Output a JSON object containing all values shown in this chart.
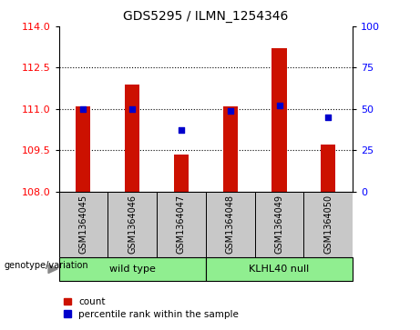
{
  "title": "GDS5295 / ILMN_1254346",
  "samples": [
    "GSM1364045",
    "GSM1364046",
    "GSM1364047",
    "GSM1364048",
    "GSM1364049",
    "GSM1364050"
  ],
  "counts": [
    111.1,
    111.9,
    109.35,
    111.1,
    113.2,
    109.7
  ],
  "percentile_ranks": [
    50,
    50,
    37,
    49,
    52,
    45
  ],
  "ylim_left": [
    108,
    114
  ],
  "ylim_right": [
    0,
    100
  ],
  "yticks_left": [
    108,
    109.5,
    111,
    112.5,
    114
  ],
  "yticks_right": [
    0,
    25,
    50,
    75,
    100
  ],
  "bar_color": "#CC1100",
  "dot_color": "#0000CC",
  "tick_label_bg": "#C8C8C8",
  "legend_red_label": "count",
  "legend_blue_label": "percentile rank within the sample",
  "genotype_color": "#90EE90",
  "figsize": [
    4.61,
    3.63
  ],
  "dpi": 100
}
